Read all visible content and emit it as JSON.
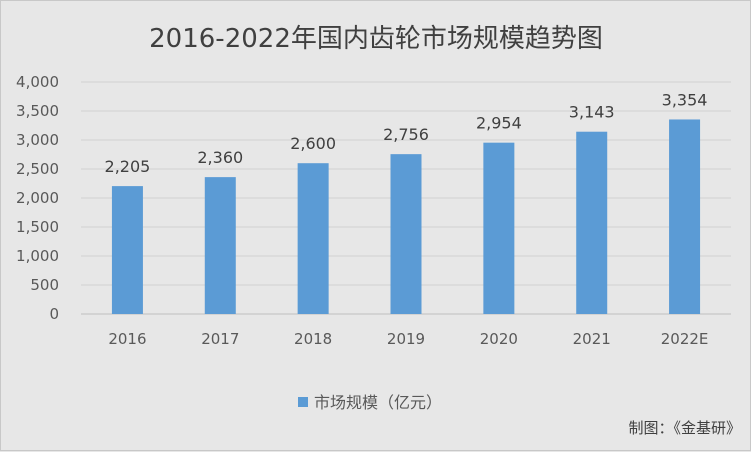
{
  "chart_data": {
    "type": "bar",
    "title": "2016-2022年国内齿轮市场规模趋势图",
    "categories": [
      "2016",
      "2017",
      "2018",
      "2019",
      "2020",
      "2021",
      "2022E"
    ],
    "series": [
      {
        "name": "市场规模（亿元）",
        "values": [
          2205,
          2360,
          2600,
          2756,
          2954,
          3143,
          3354
        ],
        "data_labels": [
          "2,205",
          "2,360",
          "2,600",
          "2,756",
          "2,954",
          "3,143",
          "3,354"
        ],
        "color": "#5b9bd5"
      }
    ],
    "ylim": [
      0,
      4000
    ],
    "yticks": [
      0,
      500,
      1000,
      1500,
      2000,
      2500,
      3000,
      3500,
      4000
    ],
    "ytick_labels": [
      "0",
      "500",
      "1,000",
      "1,500",
      "2,000",
      "2,500",
      "3,000",
      "3,500",
      "4,000"
    ],
    "grid": true,
    "legend_position": "bottom"
  },
  "credit": "制图：《金基研》"
}
